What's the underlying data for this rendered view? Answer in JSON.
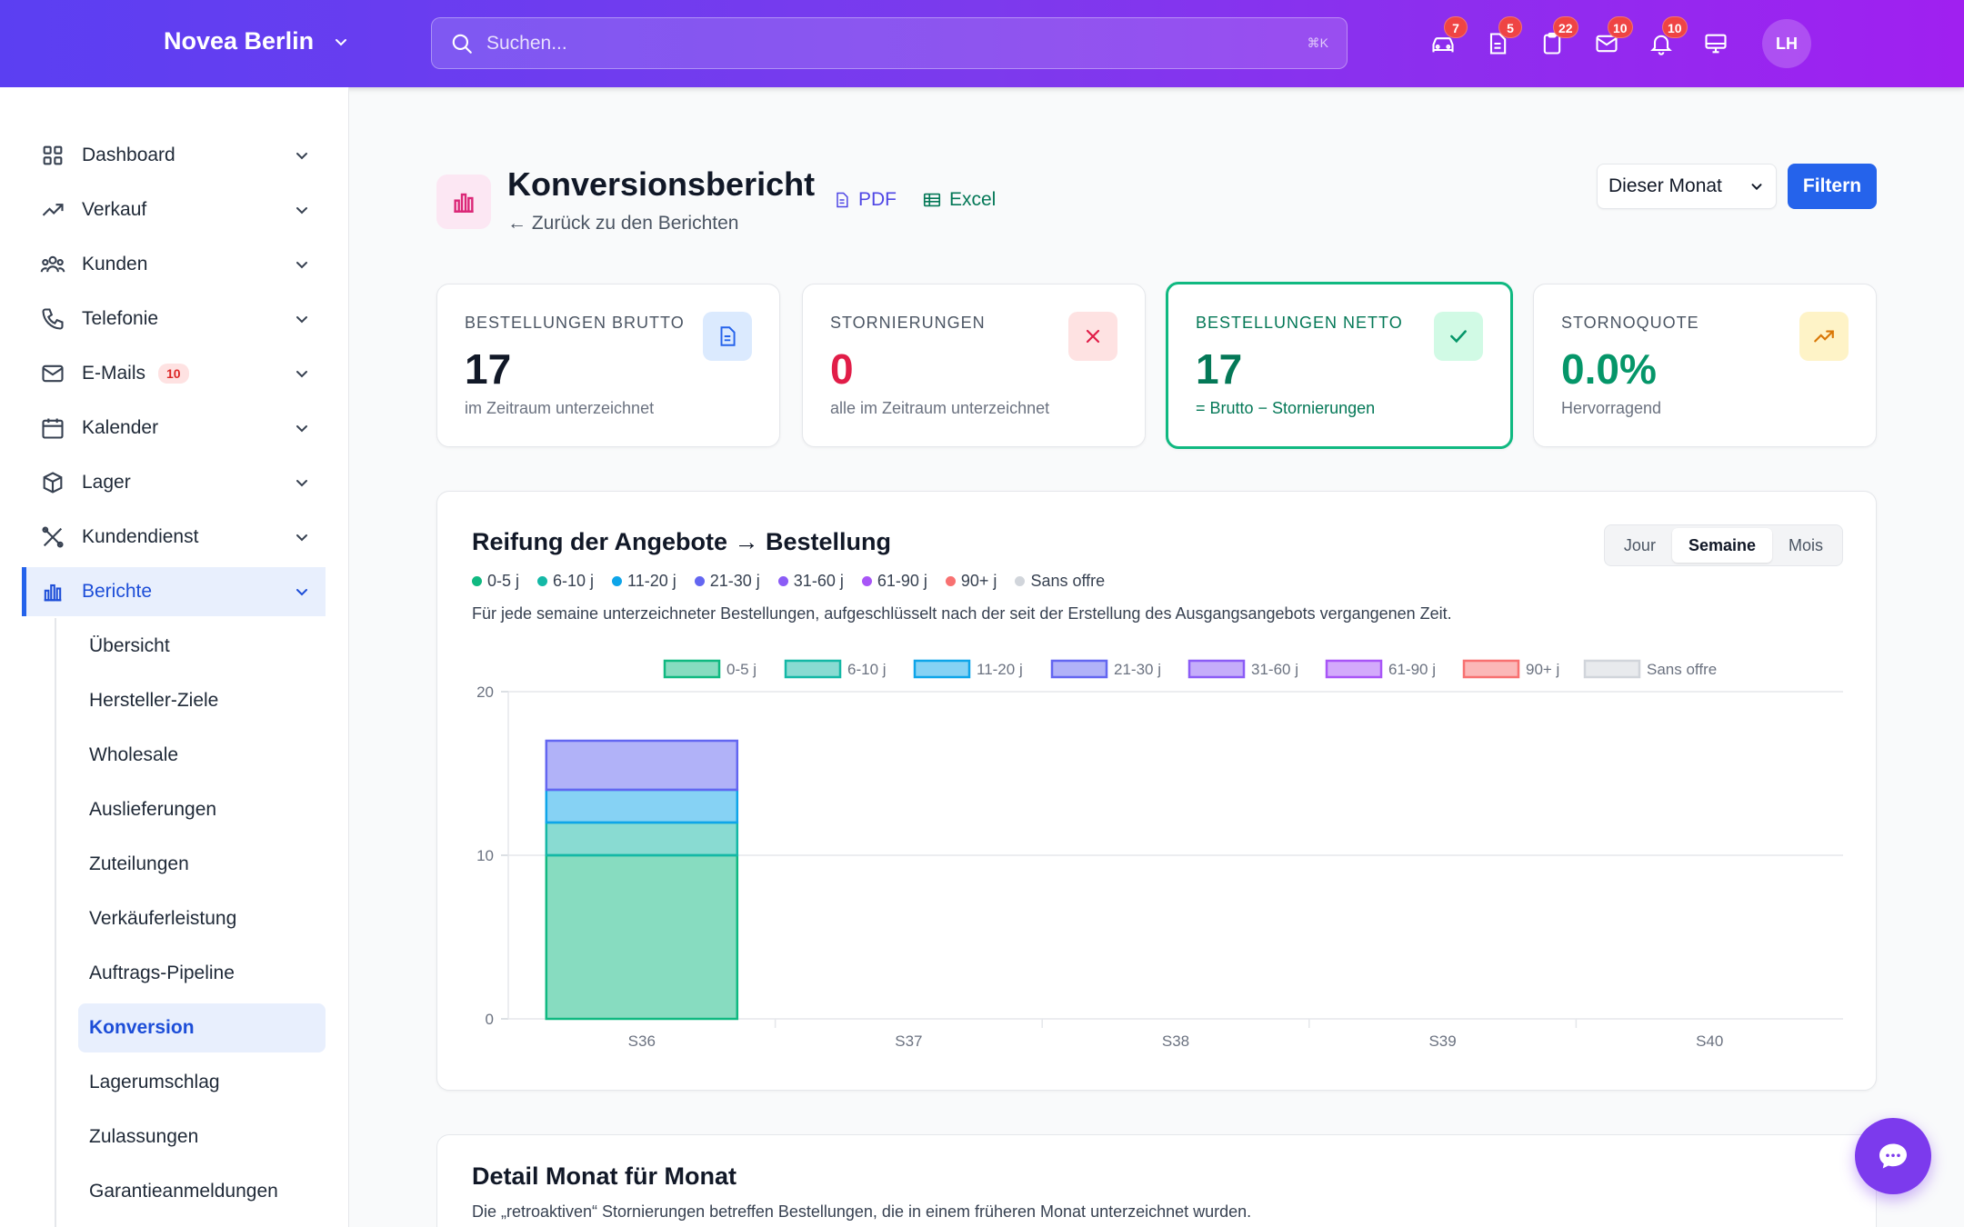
{
  "header": {
    "brand": "Novea Berlin",
    "search_placeholder": "Suchen...",
    "search_kbd": "⌘K",
    "icons": [
      {
        "name": "car-icon",
        "badge": "7"
      },
      {
        "name": "document-icon",
        "badge": "5"
      },
      {
        "name": "clipboard-icon",
        "badge": "22"
      },
      {
        "name": "mail-icon",
        "badge": "10"
      },
      {
        "name": "bell-icon",
        "badge": "10"
      },
      {
        "name": "monitor-icon",
        "badge": ""
      }
    ],
    "avatar": "LH"
  },
  "sidebar": {
    "items": [
      {
        "label": "Dashboard",
        "icon": "grid-icon"
      },
      {
        "label": "Verkauf",
        "icon": "trend-icon"
      },
      {
        "label": "Kunden",
        "icon": "users-icon"
      },
      {
        "label": "Telefonie",
        "icon": "phone-icon"
      },
      {
        "label": "E-Mails",
        "icon": "mail-icon",
        "badge": "10"
      },
      {
        "label": "Kalender",
        "icon": "calendar-icon"
      },
      {
        "label": "Lager",
        "icon": "box-icon"
      },
      {
        "label": "Kundendienst",
        "icon": "tools-icon"
      },
      {
        "label": "Berichte",
        "icon": "bar-chart-icon"
      }
    ],
    "sub_items": [
      "Übersicht",
      "Hersteller-Ziele",
      "Wholesale",
      "Auslieferungen",
      "Zuteilungen",
      "Verkäuferleistung",
      "Auftrags-Pipeline",
      "Konversion",
      "Lagerumschlag",
      "Zulassungen",
      "Garantieanmeldungen"
    ]
  },
  "page": {
    "title": "Konversionsbericht",
    "back": "← Zurück zu den Berichten",
    "pdf": "PDF",
    "excel": "Excel",
    "period": "Dieser Monat",
    "filter": "Filtern"
  },
  "kpis": [
    {
      "label": "BESTELLUNGEN BRUTTO",
      "value": "17",
      "sub": "im Zeitraum unterzeichnet",
      "color": "#111827"
    },
    {
      "label": "STORNIERUNGEN",
      "value": "0",
      "sub": "alle im Zeitraum unterzeichnet",
      "color": "#e11d48"
    },
    {
      "label": "BESTELLUNGEN NETTO",
      "value": "17",
      "sub": "= Brutto − Stornierungen",
      "color": "#047857"
    },
    {
      "label": "STORNOQUOTE",
      "value": "0.0%",
      "sub": "Hervorragend",
      "color": "#059669"
    }
  ],
  "chart_card": {
    "title": "Reifung der Angebote → Bestellung",
    "desc": "Für jede semaine unterzeichneter Bestellungen, aufgeschlüsselt nach der seit der Erstellung des Ausgangsangebots vergangenen Zeit.",
    "toggle": [
      "Jour",
      "Semaine",
      "Mois"
    ],
    "toggle_active": "Semaine"
  },
  "chart_data": {
    "type": "bar",
    "stacked": true,
    "categories": [
      "S36",
      "S37",
      "S38",
      "S39",
      "S40"
    ],
    "series": [
      {
        "name": "0-5 j",
        "values": [
          10,
          0,
          0,
          0,
          0
        ],
        "color": "#10b981"
      },
      {
        "name": "6-10 j",
        "values": [
          2,
          0,
          0,
          0,
          0
        ],
        "color": "#14b8a6"
      },
      {
        "name": "11-20 j",
        "values": [
          2,
          0,
          0,
          0,
          0
        ],
        "color": "#0ea5e9"
      },
      {
        "name": "21-30 j",
        "values": [
          3,
          0,
          0,
          0,
          0
        ],
        "color": "#6366f1"
      },
      {
        "name": "31-60 j",
        "values": [
          0,
          0,
          0,
          0,
          0
        ],
        "color": "#8b5cf6"
      },
      {
        "name": "61-90 j",
        "values": [
          0,
          0,
          0,
          0,
          0
        ],
        "color": "#a855f7"
      },
      {
        "name": "90+ j",
        "values": [
          0,
          0,
          0,
          0,
          0
        ],
        "color": "#f87171"
      },
      {
        "name": "Sans offre",
        "values": [
          0,
          0,
          0,
          0,
          0
        ],
        "color": "#d1d5db"
      }
    ],
    "yticks": [
      0,
      10,
      20
    ],
    "ylim": [
      0,
      20
    ],
    "grid": true,
    "legend": "top"
  },
  "detail": {
    "title": "Detail Monat für Monat",
    "desc": "Die „retroaktiven“ Stornierungen betreffen Bestellungen, die in einem früheren Monat unterzeichnet wurden."
  }
}
